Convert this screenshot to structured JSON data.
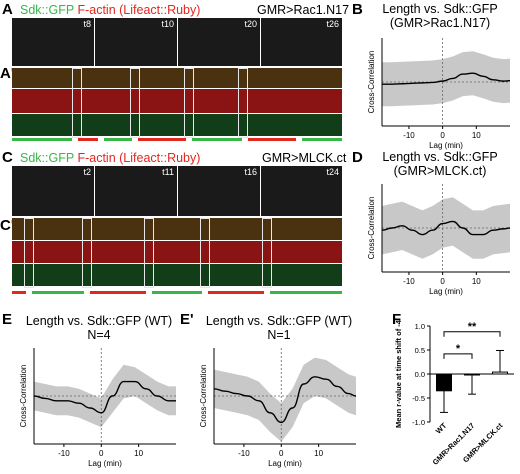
{
  "panels": {
    "A": {
      "letter": "A",
      "sub_letter": "A'",
      "legend_green": "Sdk::GFP",
      "legend_red": "F-actin (Lifeact::Ruby)",
      "genotype": "GMR>Rac1.N17",
      "frames": [
        "t8",
        "t10",
        "t20",
        "t26"
      ],
      "bars": [
        "green",
        "red",
        "green",
        "red",
        "green",
        "red",
        "green"
      ]
    },
    "C": {
      "letter": "C",
      "sub_letter": "C'",
      "legend_green": "Sdk::GFP",
      "legend_red": "F-actin (Lifeact::Ruby)",
      "genotype": "GMR>MLCK.ct",
      "frames": [
        "t2",
        "t11",
        "t16",
        "t24"
      ],
      "bars": [
        "red",
        "green",
        "red",
        "green",
        "red",
        "green"
      ]
    },
    "B": {
      "letter": "B"
    },
    "D": {
      "letter": "D"
    },
    "E": {
      "letter": "E"
    },
    "E2": {
      "letter": "E'"
    },
    "F": {
      "letter": "F"
    }
  },
  "colors": {
    "green": "#39b54a",
    "red": "#e0281e",
    "band": "#c8c8c8"
  },
  "chart_data": [
    {
      "id": "B",
      "type": "line",
      "title": "Length vs. Sdk::GFP",
      "subtitle": "(GMR>Rac1.N17)",
      "xlabel": "Lag (min)",
      "ylabel": "Cross-Correlation",
      "xlim": [
        -18,
        20
      ],
      "ylim": [
        -1,
        1
      ],
      "xticks": [
        -10,
        0,
        10
      ],
      "x": [
        -18,
        -15,
        -12,
        -9,
        -6,
        -3,
        0,
        3,
        6,
        9,
        12,
        15,
        18,
        20
      ],
      "y": [
        -0.05,
        -0.05,
        -0.04,
        -0.03,
        -0.02,
        -0.01,
        0.02,
        0.08,
        0.18,
        0.2,
        0.13,
        0.05,
        0.02,
        0.03
      ],
      "band_half": [
        0.5,
        0.5,
        0.5,
        0.5,
        0.5,
        0.5,
        0.5,
        0.5,
        0.5,
        0.5,
        0.5,
        0.5,
        0.5,
        0.5
      ]
    },
    {
      "id": "D",
      "type": "line",
      "title": "Length vs. Sdk::GFP",
      "subtitle": "(GMR>MLCK.ct)",
      "xlabel": "Lag (min)",
      "ylabel": "Cross-Correlation",
      "xlim": [
        -18,
        20
      ],
      "ylim": [
        -1,
        1
      ],
      "xticks": [
        -10,
        0,
        10
      ],
      "x": [
        -18,
        -15,
        -12,
        -9,
        -6,
        -3,
        0,
        3,
        6,
        9,
        12,
        15,
        18,
        20
      ],
      "y": [
        -0.05,
        0.0,
        0.05,
        -0.05,
        -0.15,
        -0.05,
        0.1,
        0.15,
        0.0,
        -0.15,
        -0.15,
        -0.05,
        -0.02,
        0.0
      ],
      "band_half": [
        0.55,
        0.55,
        0.55,
        0.55,
        0.55,
        0.55,
        0.55,
        0.55,
        0.55,
        0.55,
        0.55,
        0.55,
        0.55,
        0.55
      ]
    },
    {
      "id": "E",
      "type": "line",
      "title": "Length vs. Sdk::GFP (WT)",
      "subtitle": "N=4",
      "xlabel": "Lag (min)",
      "ylabel": "Cross-Correlation",
      "xlim": [
        -18,
        20
      ],
      "ylim": [
        -1,
        1
      ],
      "xticks": [
        -10,
        0,
        10
      ],
      "x": [
        -18,
        -15,
        -12,
        -9,
        -6,
        -3,
        0,
        3,
        6,
        9,
        12,
        15,
        18,
        20
      ],
      "y": [
        0.0,
        -0.05,
        -0.1,
        -0.1,
        -0.15,
        -0.25,
        -0.35,
        0.0,
        0.3,
        0.3,
        0.15,
        0.0,
        -0.1,
        -0.1
      ],
      "band_half": [
        0.3,
        0.3,
        0.3,
        0.3,
        0.3,
        0.3,
        0.3,
        0.35,
        0.35,
        0.3,
        0.3,
        0.3,
        0.3,
        0.3
      ]
    },
    {
      "id": "E2",
      "type": "line",
      "title": "Length vs. Sdk::GFP (WT)",
      "subtitle": "N=1",
      "xlabel": "Lag (min)",
      "ylabel": "Cross-Correlation",
      "xlim": [
        -18,
        20
      ],
      "ylim": [
        -1,
        1
      ],
      "xticks": [
        -10,
        0,
        10
      ],
      "x": [
        -18,
        -15,
        -12,
        -9,
        -6,
        -3,
        0,
        3,
        6,
        9,
        12,
        15,
        18,
        20
      ],
      "y": [
        0.15,
        0.1,
        0.05,
        0.0,
        -0.1,
        -0.35,
        -0.55,
        -0.25,
        0.25,
        0.4,
        0.35,
        0.2,
        0.05,
        0.0
      ],
      "band_half": [
        0.4,
        0.4,
        0.4,
        0.4,
        0.4,
        0.4,
        0.4,
        0.4,
        0.4,
        0.4,
        0.4,
        0.4,
        0.4,
        0.4
      ]
    },
    {
      "id": "F",
      "type": "bar",
      "ylabel": "Mean r-value at time shift of -4",
      "categories": [
        "WT",
        "GMR>Rac1.N17",
        "GMR>MLCK.ct"
      ],
      "values": [
        -0.35,
        -0.02,
        0.04
      ],
      "errors": [
        0.45,
        0.4,
        0.45
      ],
      "ylim": [
        -1,
        1
      ],
      "yticks": [
        -1.0,
        -0.5,
        0.0,
        0.5,
        1.0
      ],
      "significance": [
        {
          "from": 0,
          "to": 1,
          "label": "*"
        },
        {
          "from": 0,
          "to": 2,
          "label": "**"
        }
      ]
    }
  ]
}
